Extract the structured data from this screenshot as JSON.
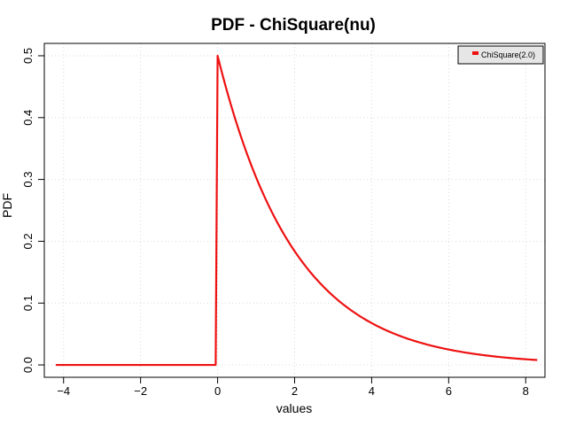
{
  "chart_data": {
    "type": "line",
    "title": "PDF - ChiSquare(nu)",
    "xlabel": "values",
    "ylabel": "PDF",
    "xlim": [
      -4.5,
      8.5
    ],
    "ylim": [
      -0.02,
      0.52
    ],
    "x_ticks": [
      -4,
      -2,
      0,
      2,
      4,
      6,
      8
    ],
    "x_tick_labels": [
      "−4",
      "−2",
      "0",
      "2",
      "4",
      "6",
      "8"
    ],
    "y_ticks": [
      0.0,
      0.1,
      0.2,
      0.3,
      0.4,
      0.5
    ],
    "y_tick_labels": [
      "0.0",
      "0.1",
      "0.2",
      "0.3",
      "0.4",
      "0.5"
    ],
    "grid": true,
    "legend_position": "top-right",
    "series": [
      {
        "name": "ChiSquare(2.0)",
        "color": "#ee1111",
        "distribution": "chi-square, nu = 2",
        "x": [
          -4.2,
          -0.05,
          0.0,
          0.25,
          0.5,
          0.75,
          1.0,
          1.25,
          1.5,
          1.75,
          2.0,
          2.5,
          3.0,
          3.5,
          4.0,
          4.5,
          5.0,
          5.5,
          6.0,
          6.5,
          7.0,
          7.5,
          8.0,
          8.3
        ],
        "y": [
          0.0,
          0.0,
          0.5,
          0.441,
          0.389,
          0.344,
          0.303,
          0.268,
          0.236,
          0.208,
          0.184,
          0.143,
          0.112,
          0.087,
          0.068,
          0.053,
          0.041,
          0.032,
          0.025,
          0.019,
          0.015,
          0.012,
          0.009,
          0.008
        ]
      }
    ]
  }
}
